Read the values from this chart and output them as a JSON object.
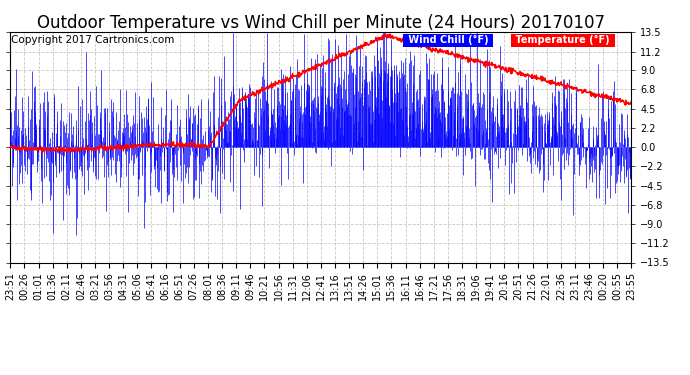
{
  "title": "Outdoor Temperature vs Wind Chill per Minute (24 Hours) 20170107",
  "copyright": "Copyright 2017 Cartronics.com",
  "ylabel_right_values": [
    13.5,
    11.2,
    9.0,
    6.8,
    4.5,
    2.2,
    0.0,
    -2.2,
    -4.5,
    -6.8,
    -9.0,
    -11.2,
    -13.5
  ],
  "ylim": [
    -13.5,
    13.5
  ],
  "legend_wind_chill": "Wind Chill (°F)",
  "legend_temp": "Temperature (°F)",
  "wind_chill_color": "#ff0000",
  "temp_color": "#0000ff",
  "background_color": "#ffffff",
  "plot_bg_color": "#ffffff",
  "grid_color": "#c8c8c8",
  "title_fontsize": 12,
  "copyright_fontsize": 7.5,
  "tick_fontsize": 7,
  "time_labels": [
    "23:51",
    "00:26",
    "01:01",
    "01:36",
    "02:11",
    "02:46",
    "03:21",
    "03:56",
    "04:31",
    "05:06",
    "05:41",
    "06:16",
    "06:51",
    "07:26",
    "08:01",
    "08:36",
    "09:11",
    "09:46",
    "10:21",
    "10:56",
    "11:31",
    "12:06",
    "12:41",
    "13:16",
    "13:51",
    "14:26",
    "15:01",
    "15:36",
    "16:11",
    "16:46",
    "17:21",
    "17:56",
    "18:31",
    "19:06",
    "19:41",
    "20:16",
    "20:51",
    "21:26",
    "22:01",
    "22:36",
    "23:11",
    "23:46",
    "00:20",
    "00:55",
    "23:55"
  ],
  "n_points": 1440,
  "seed": 42
}
